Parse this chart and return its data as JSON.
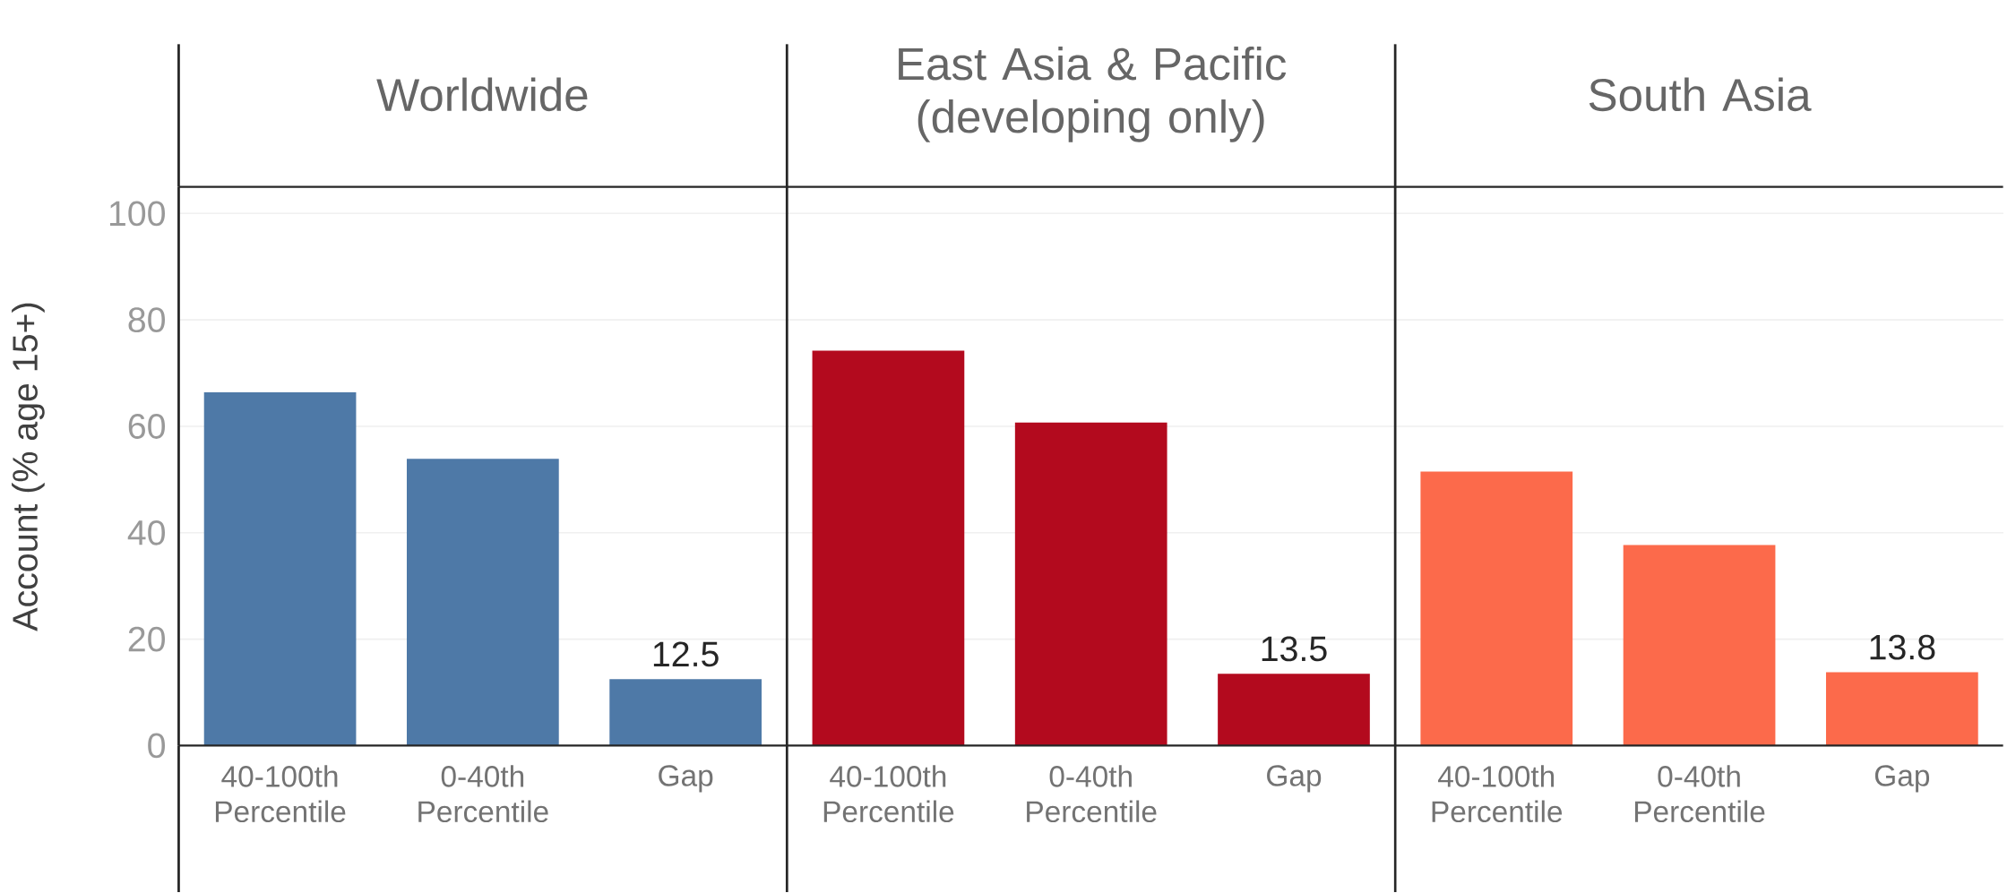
{
  "chart_data": [
    {
      "type": "bar",
      "title": "Worldwide",
      "ylabel": "Account (% age 15+)",
      "categories": [
        "40-100th Percentile",
        "0-40th Percentile",
        "Gap"
      ],
      "values": [
        66.4,
        53.9,
        12.5
      ],
      "value_labels": [
        null,
        null,
        "12.5"
      ],
      "color": "#4e79a7",
      "ylim": [
        0,
        105
      ],
      "yticks": [
        0,
        20,
        40,
        60,
        80,
        100
      ],
      "grid": "y"
    },
    {
      "type": "bar",
      "title": "East Asia & Pacific (developing only)",
      "categories": [
        "40-100th Percentile",
        "0-40th Percentile",
        "Gap"
      ],
      "values": [
        74.2,
        60.7,
        13.5
      ],
      "value_labels": [
        null,
        null,
        "13.5"
      ],
      "color": "#b30a1e",
      "ylim": [
        0,
        105
      ],
      "yticks": [
        0,
        20,
        40,
        60,
        80,
        100
      ],
      "grid": "y",
      "tick_labels": "x"
    },
    {
      "type": "bar",
      "title": "South Asia",
      "categories": [
        "40-100th Percentile",
        "0-40th Percentile",
        "Gap"
      ],
      "values": [
        51.5,
        37.7,
        13.8
      ],
      "value_labels": [
        null,
        null,
        "13.8"
      ],
      "color": "#fc6a4b",
      "ylim": [
        0,
        105
      ],
      "yticks": [
        0,
        20,
        40,
        60,
        80,
        100
      ],
      "grid": "y",
      "tick_labels": "x"
    }
  ]
}
